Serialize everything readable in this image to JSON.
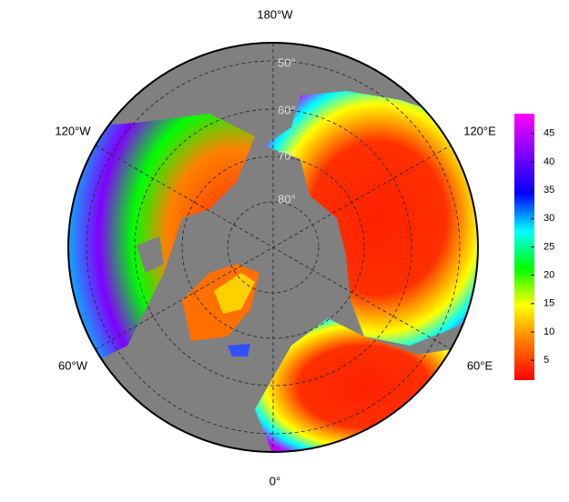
{
  "map": {
    "longitude_labels": [
      "180°W",
      "120°W",
      "120°E",
      "60°W",
      "60°E",
      "0°"
    ],
    "latitude_labels": [
      "50°",
      "60°",
      "70°",
      "80°"
    ]
  },
  "colorbar": {
    "range": [
      1.5,
      48.5
    ],
    "ticks": [
      5,
      10,
      15,
      20,
      25,
      30,
      35,
      40,
      45
    ]
  }
}
